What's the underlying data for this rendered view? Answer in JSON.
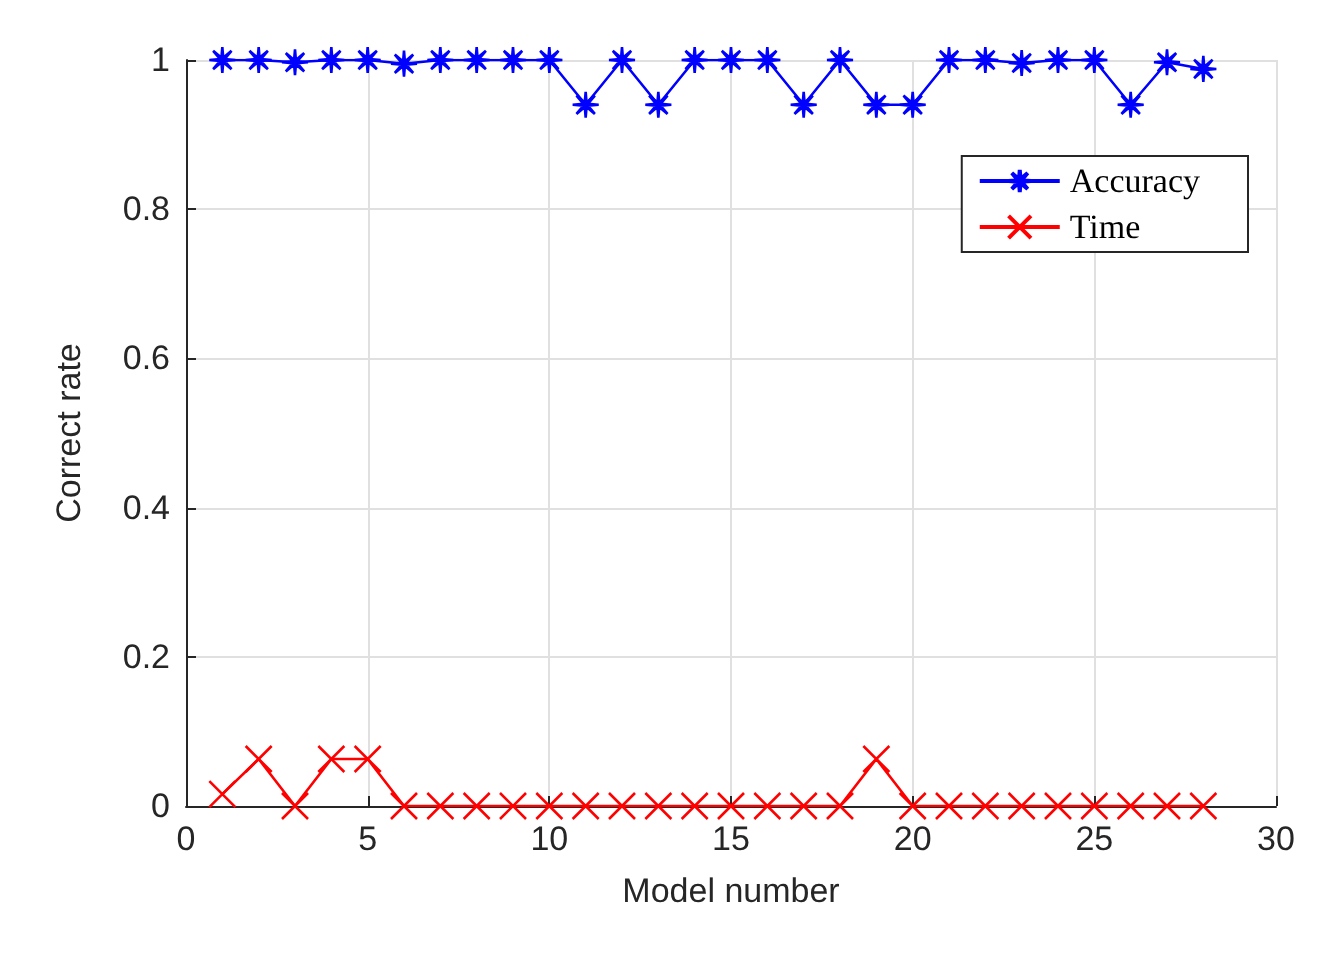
{
  "chart_data": {
    "type": "line",
    "xlabel": "Model number",
    "ylabel": "Correct rate",
    "x": [
      1,
      2,
      3,
      4,
      5,
      6,
      7,
      8,
      9,
      10,
      11,
      12,
      13,
      14,
      15,
      16,
      17,
      18,
      19,
      20,
      21,
      22,
      23,
      24,
      25,
      26,
      27,
      28
    ],
    "series": [
      {
        "name": "Accuracy",
        "color": "#0000ff",
        "marker": "star",
        "values": [
          1,
          1,
          0.997,
          1,
          1,
          0.995,
          1,
          1,
          1,
          1,
          0.94,
          1,
          0.94,
          1,
          1,
          1,
          0.94,
          1,
          0.94,
          0.94,
          1,
          1,
          0.996,
          1,
          1,
          0.94,
          0.997,
          0.988
        ]
      },
      {
        "name": "Time",
        "color": "#ff0000",
        "marker": "cross",
        "values": [
          0.016,
          0.063,
          0,
          0.063,
          0.063,
          0,
          0,
          0,
          0,
          0,
          0,
          0,
          0,
          0,
          0,
          0,
          0,
          0,
          0.063,
          0,
          0,
          0,
          0,
          0,
          0,
          0,
          0,
          0
        ]
      }
    ],
    "xlim": [
      0,
      30
    ],
    "xticks": [
      0,
      5,
      10,
      15,
      20,
      25,
      30
    ],
    "ylim": [
      0,
      1
    ],
    "yticks": [
      0,
      0.2,
      0.4,
      0.6,
      0.8,
      1
    ],
    "grid": true,
    "legend": "top right",
    "line_style": "solid"
  }
}
